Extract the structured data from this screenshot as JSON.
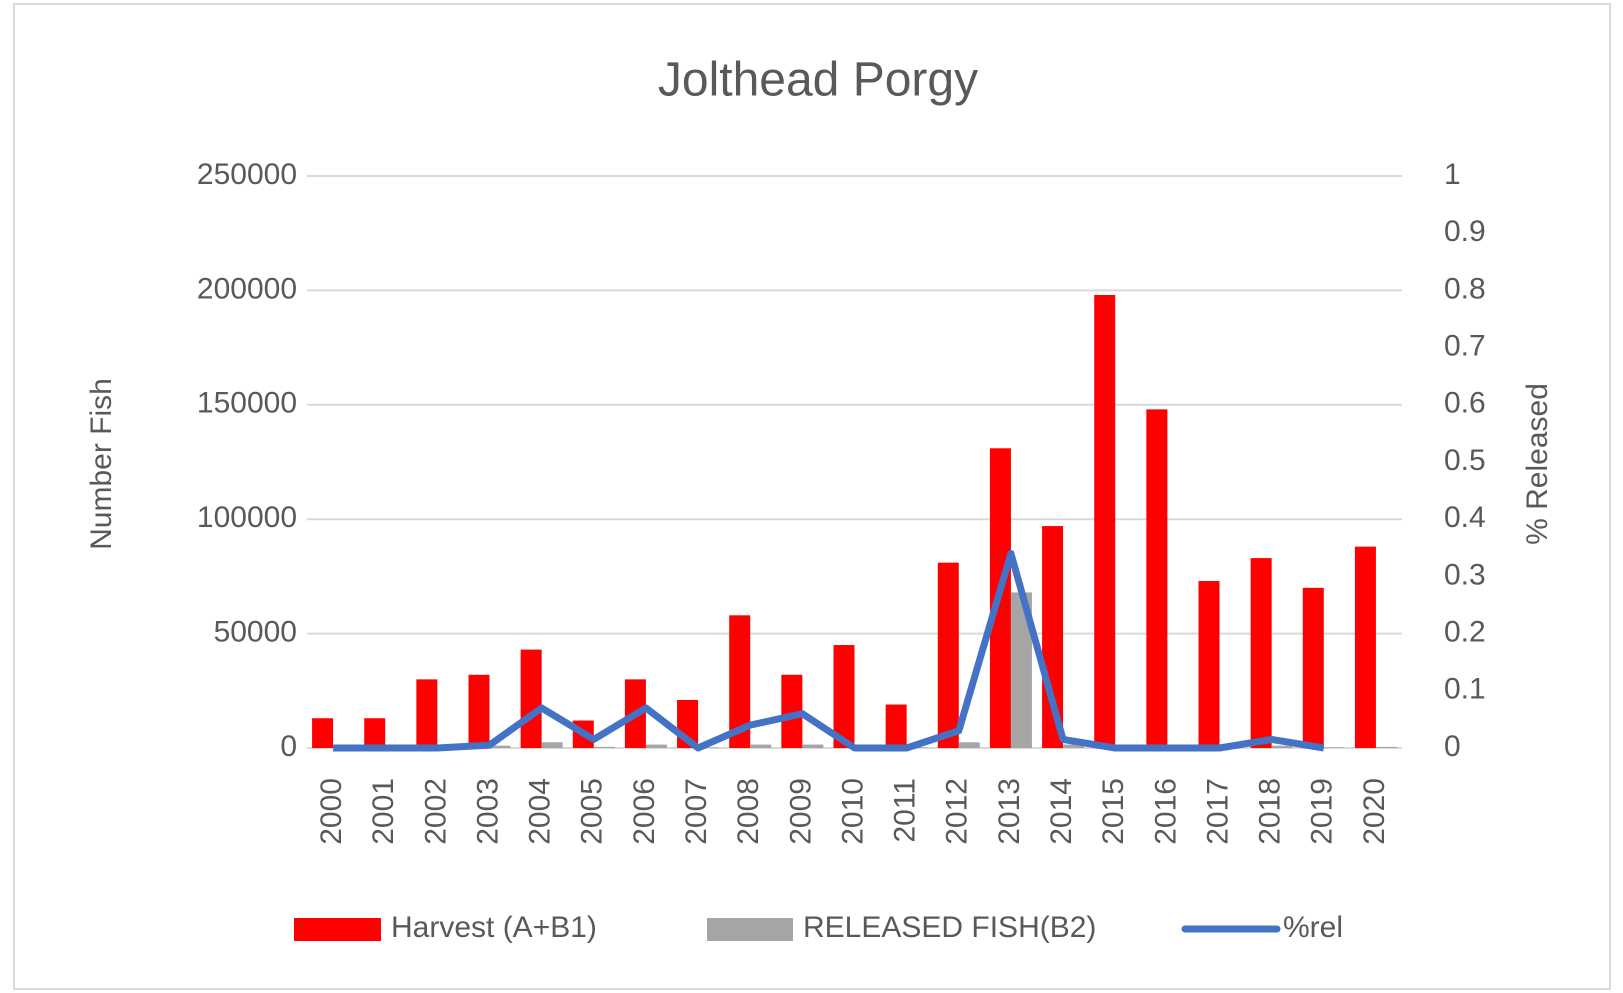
{
  "chart_data": {
    "type": "bar-line",
    "title": "Jolthead Porgy",
    "ylabel": "Number Fish",
    "y2label": "% Released",
    "categories": [
      "2000",
      "2001",
      "2002",
      "2003",
      "2004",
      "2005",
      "2006",
      "2007",
      "2008",
      "2009",
      "2010",
      "2011",
      "2012",
      "2013",
      "2014",
      "2015",
      "2016",
      "2017",
      "2018",
      "2019",
      "2020"
    ],
    "series": [
      {
        "name": "Harvest (A+B1)",
        "color": "#ff0000",
        "type": "bar",
        "values": [
          13000,
          13000,
          30000,
          32000,
          43000,
          12000,
          30000,
          21000,
          58000,
          32000,
          45000,
          19000,
          81000,
          131000,
          97000,
          198000,
          148000,
          73000,
          83000,
          70000,
          88000
        ]
      },
      {
        "name": "RELEASED FISH(B2)",
        "color": "#a5a5a5",
        "type": "bar",
        "values": [
          0,
          0,
          500,
          1000,
          2500,
          500,
          1500,
          200,
          1500,
          1500,
          300,
          300,
          2500,
          68000,
          1500,
          300,
          200,
          300,
          1000,
          300,
          500
        ]
      },
      {
        "name": "%rel",
        "color": "#4472c4",
        "type": "line",
        "axis": "y2",
        "values": [
          0,
          0,
          0,
          0.005,
          0.07,
          0.015,
          0.07,
          0,
          0.04,
          0.06,
          0,
          0,
          0.03,
          0.34,
          0.015,
          0,
          0,
          0,
          0.015,
          0,
          null
        ]
      }
    ],
    "ylim": [
      0,
      250000
    ],
    "yticks": [
      0,
      50000,
      100000,
      150000,
      200000,
      250000
    ],
    "y2lim": [
      0,
      1
    ],
    "y2ticks": [
      0,
      0.1,
      0.2,
      0.3,
      0.4,
      0.5,
      0.6,
      0.7,
      0.8,
      0.9,
      1
    ],
    "grid": true,
    "legend": "bottom"
  }
}
